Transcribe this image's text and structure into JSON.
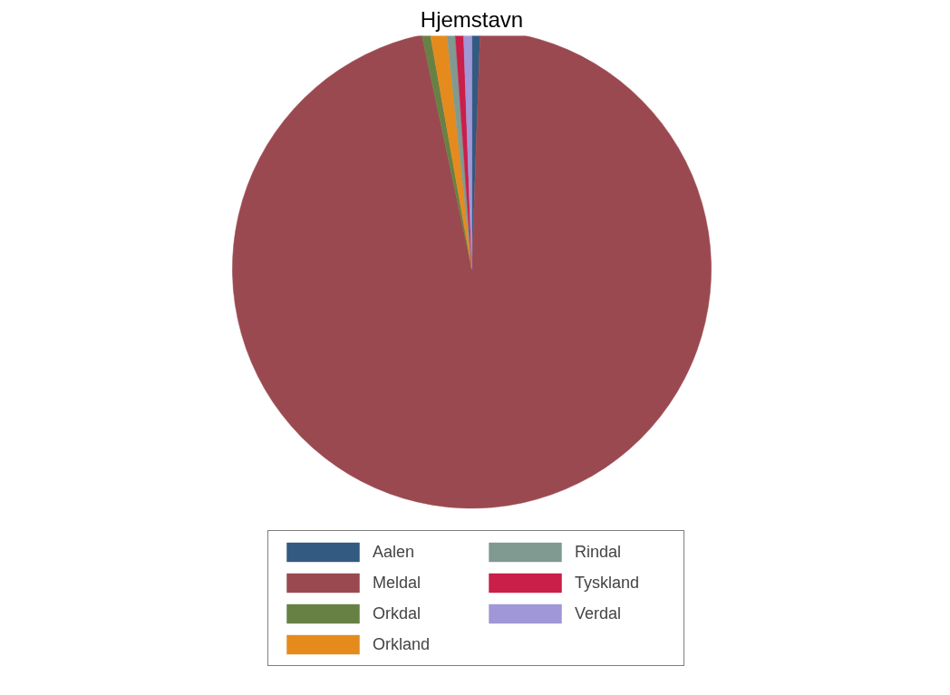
{
  "chart_data": {
    "type": "pie",
    "title": "Hjemstavn",
    "categories": [
      "Aalen",
      "Meldal",
      "Orkdal",
      "Orkland",
      "Rindal",
      "Tyskland",
      "Verdal"
    ],
    "values": [
      0.56,
      96.09,
      0.56,
      1.11,
      0.56,
      0.56,
      0.56
    ],
    "colors": [
      "#335a80",
      "#9b4950",
      "#678144",
      "#e58b1e",
      "#809a91",
      "#c91f48",
      "#a097d6"
    ],
    "legend": "bottom"
  }
}
